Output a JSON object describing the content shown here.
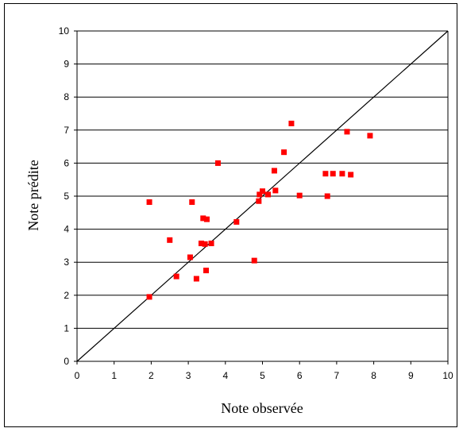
{
  "chart_data": {
    "type": "scatter",
    "title": "",
    "xlabel": "Note observée",
    "ylabel": "Note prédite",
    "xlim": [
      0,
      10
    ],
    "ylim": [
      0,
      10
    ],
    "xticks": [
      "0",
      "1",
      "2",
      "3",
      "4",
      "5",
      "6",
      "7",
      "8",
      "9",
      "10"
    ],
    "yticks": [
      "0",
      "1",
      "2",
      "3",
      "4",
      "5",
      "6",
      "7",
      "8",
      "9",
      "10"
    ],
    "grid": "horizontal",
    "legend": "none",
    "marker_color": "#ff0000",
    "reference_line": {
      "from": [
        0,
        0
      ],
      "to": [
        10,
        10
      ]
    },
    "series": [
      {
        "points": [
          [
            1.95,
            1.95
          ],
          [
            1.95,
            4.82
          ],
          [
            2.5,
            3.67
          ],
          [
            2.68,
            2.57
          ],
          [
            3.05,
            3.15
          ],
          [
            3.1,
            4.82
          ],
          [
            3.22,
            2.5
          ],
          [
            3.35,
            3.57
          ],
          [
            3.4,
            4.33
          ],
          [
            3.45,
            3.55
          ],
          [
            3.48,
            2.75
          ],
          [
            3.5,
            4.3
          ],
          [
            3.62,
            3.57
          ],
          [
            3.8,
            6.0
          ],
          [
            4.3,
            4.22
          ],
          [
            4.78,
            3.05
          ],
          [
            4.9,
            4.85
          ],
          [
            4.92,
            5.05
          ],
          [
            5.0,
            5.15
          ],
          [
            5.15,
            5.05
          ],
          [
            5.32,
            5.77
          ],
          [
            5.35,
            5.17
          ],
          [
            5.58,
            6.33
          ],
          [
            5.78,
            7.2
          ],
          [
            6.0,
            5.02
          ],
          [
            6.7,
            5.68
          ],
          [
            6.75,
            5.0
          ],
          [
            6.9,
            5.68
          ],
          [
            7.15,
            5.68
          ],
          [
            7.28,
            6.95
          ],
          [
            7.38,
            5.65
          ],
          [
            7.9,
            6.83
          ]
        ]
      }
    ]
  }
}
